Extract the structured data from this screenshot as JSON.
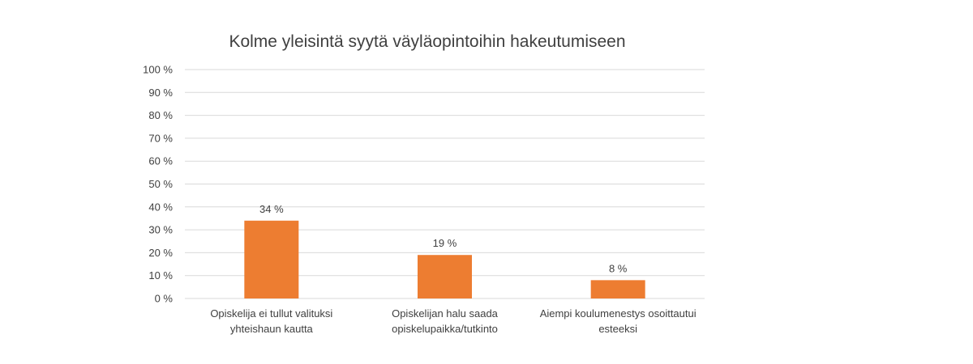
{
  "chart_data": {
    "type": "bar",
    "title": "Kolme yleisintä syytä väyläopintoihin hakeutumiseen",
    "categories": [
      [
        "Opiskelija ei tullut valituksi",
        "yhteishaun kautta"
      ],
      [
        "Opiskelijan halu saada",
        "opiskelupaikka/tutkinto"
      ],
      [
        "Aiempi koulumenestys osoittautui",
        "esteeksi"
      ]
    ],
    "values": [
      34,
      19,
      8
    ],
    "data_labels": [
      "34 %",
      "19 %",
      "8 %"
    ],
    "yticks": [
      "0 %",
      "10 %",
      "20 %",
      "30 %",
      "40 %",
      "50 %",
      "60 %",
      "70 %",
      "80 %",
      "90 %",
      "100 %"
    ],
    "ylim": [
      0,
      100
    ],
    "grid": true,
    "legend": "none",
    "bar_color": "#ED7D31"
  }
}
